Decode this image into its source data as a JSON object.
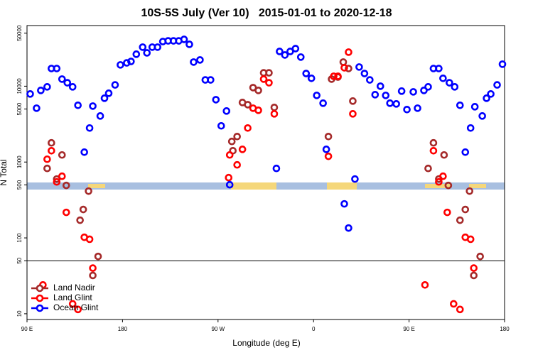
{
  "chart_data": {
    "type": "scatter",
    "title": "10S-5S July (Ver 10)   2015-01-01 to 2020-12-18",
    "x_label": "Longitude (deg E)",
    "y_label": "N Total",
    "log_y": true,
    "legend": "bottom-left",
    "hline": 50,
    "xlim": [
      90,
      540
    ],
    "xticks": [
      {
        "value": 90,
        "label": "90 E"
      },
      180,
      {
        "value": 270,
        "label": "90 W"
      },
      {
        "value": 360,
        "label": "0"
      },
      {
        "value": 450,
        "label": "90 E"
      },
      {
        "value": 540,
        "label": "180"
      }
    ],
    "ylim": [
      8.4,
      63000
    ],
    "yticks": [
      10,
      50,
      100,
      500,
      1000,
      5000,
      10000,
      50000
    ],
    "series": [
      {
        "name": "Land Nadir",
        "color": "#a52a2a",
        "x": [
          109,
          113,
          118,
          123,
          127,
          140,
          143,
          148,
          157,
          152,
          284,
          283,
          288,
          293,
          298,
          303,
          308,
          313,
          318,
          323,
          374,
          377,
          383,
          388,
          393,
          397,
          468,
          473,
          478,
          483,
          487,
          498,
          503,
          507,
          517,
          511
        ],
        "values": [
          824,
          1790,
          597,
          1240,
          492,
          171,
          237,
          414,
          57,
          32,
          1410,
          1870,
          2170,
          6100,
          5710,
          9580,
          8800,
          15000,
          15000,
          5250,
          2170,
          12400,
          13200,
          20800,
          17100,
          6370,
          824,
          1790,
          597,
          1240,
          492,
          171,
          237,
          414,
          57,
          32
        ]
      },
      {
        "name": "Land Glint",
        "color": "#ff0000",
        "x": [
          109,
          113,
          118,
          123,
          127,
          144,
          149,
          152,
          138,
          133,
          281,
          280,
          288,
          293,
          298,
          303,
          308,
          313,
          318,
          323,
          374,
          379,
          383,
          389,
          393,
          397,
          465,
          473,
          478,
          482,
          486,
          503,
          508,
          511,
          492,
          498,
          105
        ],
        "values": [
          1090,
          1410,
          547,
          650,
          217,
          102,
          96,
          40,
          11.4,
          13.5,
          1240,
          623,
          918,
          1470,
          2810,
          5130,
          4810,
          12400,
          11100,
          4320,
          1190,
          13500,
          13500,
          17500,
          28100,
          4320,
          24,
          1410,
          547,
          650,
          217,
          102,
          96,
          40,
          13.5,
          11.4,
          24
        ]
      },
      {
        "name": "Ocean Glint",
        "color": "#0000ff",
        "x": [
          93,
          99,
          103,
          109,
          113,
          118,
          123,
          128,
          133,
          138,
          144,
          149,
          152,
          159,
          163,
          167,
          173,
          178,
          184,
          188,
          193,
          199,
          203,
          208,
          213,
          218,
          223,
          228,
          233,
          238,
          243,
          247,
          253,
          258,
          263,
          268,
          273,
          278,
          281,
          325,
          328,
          333,
          338,
          343,
          348,
          353,
          358,
          363,
          369,
          372,
          389,
          393,
          399,
          403,
          408,
          413,
          418,
          423,
          428,
          432,
          438,
          443,
          448,
          454,
          458,
          464,
          468,
          473,
          478,
          482,
          488,
          493,
          498,
          503,
          508,
          512,
          519,
          523,
          527,
          533,
          538
        ],
        "values": [
          7900,
          5130,
          8800,
          9800,
          17100,
          17100,
          12400,
          11100,
          9800,
          5600,
          1350,
          2810,
          5470,
          4050,
          6940,
          8070,
          10400,
          19100,
          20300,
          21200,
          26400,
          32700,
          27500,
          32700,
          32700,
          38800,
          39600,
          39600,
          39600,
          41400,
          35600,
          20800,
          22200,
          12100,
          12100,
          6640,
          3000,
          4710,
          502,
          824,
          28700,
          25800,
          28700,
          31300,
          24200,
          14700,
          12700,
          7560,
          5970,
          1470,
          281,
          135,
          597,
          17900,
          14700,
          12100,
          7730,
          10000,
          7560,
          5970,
          5840,
          8610,
          4920,
          8420,
          5130,
          8800,
          9800,
          17100,
          17100,
          12700,
          11100,
          9800,
          5600,
          1350,
          2810,
          5360,
          4050,
          6940,
          7900,
          10400,
          19500
        ]
      }
    ]
  }
}
